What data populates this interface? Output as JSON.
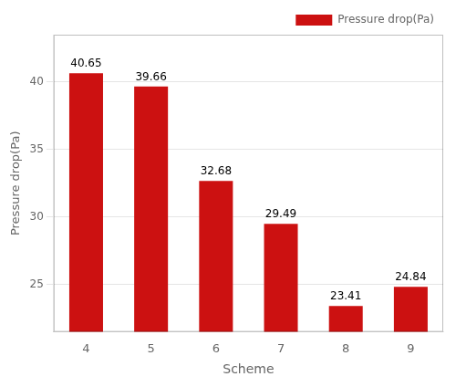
{
  "chart_data": {
    "type": "bar",
    "categories": [
      "4",
      "5",
      "6",
      "7",
      "8",
      "9"
    ],
    "series": [
      {
        "name": "Pressure drop(Pa)",
        "color": "#CC1111",
        "values": [
          40.65,
          39.66,
          32.68,
          29.49,
          23.41,
          24.84
        ]
      }
    ],
    "xlabel": "Scheme",
    "ylabel": "Pressure drop(Pa)",
    "ylim": [
      21.5,
      43.5
    ],
    "yticks": [
      25,
      30,
      35,
      40
    ],
    "grid": true,
    "legend": "upper right",
    "data_labels": true
  }
}
